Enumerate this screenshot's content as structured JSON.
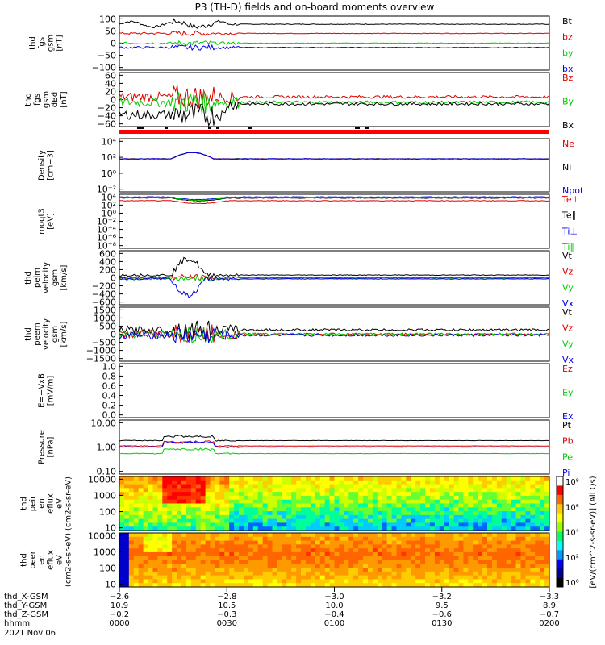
{
  "title": "P3 (TH-D) fields and on-board moments overview",
  "chart_data": [
    {
      "type": "line",
      "ylabel": [
        "thd",
        "fgs",
        "gsm",
        "[nT]"
      ],
      "yticks": [
        "100",
        "50",
        "0",
        "−50",
        "−100"
      ],
      "ylim": [
        -100,
        100
      ],
      "series": [
        {
          "name": "Bt",
          "color": "#000000",
          "baseline": 40
        },
        {
          "name": "bz",
          "color": "#dd0000",
          "baseline": 30
        },
        {
          "name": "by",
          "color": "#00cc00",
          "baseline": 0
        },
        {
          "name": "bx",
          "color": "#0000ee",
          "baseline": -20
        }
      ]
    },
    {
      "type": "line",
      "ylabel": [
        "thd",
        "fgs",
        "gsm",
        "dBd",
        "[nT]"
      ],
      "yticks": [
        "60",
        "40",
        "20",
        "0",
        "−20",
        "−40",
        "−60"
      ],
      "ylim": [
        -80,
        60
      ],
      "series": [
        {
          "name": "Bz",
          "color": "#dd0000",
          "baseline": 0
        },
        {
          "name": "By",
          "color": "#00cc00",
          "baseline": -5
        },
        {
          "name": "Bx",
          "color": "#000000",
          "baseline": -5
        }
      ]
    },
    {
      "type": "line",
      "ylabel": [
        "Density",
        "[cm−3]"
      ],
      "yticks": [
        "10⁴",
        "10²",
        "10⁰",
        "10⁻²"
      ],
      "yscale": "log",
      "series": [
        {
          "name": "Ne",
          "color": "#dd0000"
        },
        {
          "name": "Ni",
          "color": "#000000"
        },
        {
          "name": "Npot",
          "color": "#0000ee"
        }
      ]
    },
    {
      "type": "line",
      "ylabel": [
        "moqt3",
        "[eV]"
      ],
      "yticks": [
        "10⁴",
        "10²",
        "10⁰",
        "10⁻²",
        "10⁻⁴",
        "10⁻⁶",
        "10⁻⁸"
      ],
      "yscale": "log",
      "series": [
        {
          "name": "Te⊥",
          "color": "#dd0000"
        },
        {
          "name": "Te∥",
          "color": "#000000"
        },
        {
          "name": "Ti⊥",
          "color": "#0000ee"
        },
        {
          "name": "Ti∥",
          "color": "#00cc00"
        }
      ]
    },
    {
      "type": "line",
      "ylabel": [
        "thd",
        "peim",
        "velocity",
        "gsm",
        "[km/s]"
      ],
      "yticks": [
        "600",
        "400",
        "200",
        "0",
        "−200",
        "−400",
        "−600"
      ],
      "ylim": [
        -600,
        600
      ],
      "series": [
        {
          "name": "Vt",
          "color": "#000000"
        },
        {
          "name": "Vz",
          "color": "#dd0000"
        },
        {
          "name": "Vy",
          "color": "#00cc00"
        },
        {
          "name": "Vx",
          "color": "#0000ee"
        }
      ]
    },
    {
      "type": "line",
      "ylabel": [
        "thd",
        "peem",
        "velocity",
        "gsm",
        "[km/s]"
      ],
      "yticks": [
        "1500",
        "1000",
        "500",
        "0",
        "−500",
        "−1000",
        "−1500"
      ],
      "ylim": [
        -1500,
        1500
      ],
      "series": [
        {
          "name": "Vt",
          "color": "#000000"
        },
        {
          "name": "Vz",
          "color": "#dd0000"
        },
        {
          "name": "Vy",
          "color": "#00cc00"
        },
        {
          "name": "Vx",
          "color": "#0000ee"
        }
      ]
    },
    {
      "type": "line",
      "ylabel": [
        "E=−VxB",
        "[mV/m]"
      ],
      "yticks": [
        "1.0",
        "0.8",
        "0.6",
        "0.4",
        "0.2",
        "0.0"
      ],
      "ylim": [
        0,
        1
      ],
      "series": [
        {
          "name": "Ez",
          "color": "#dd0000"
        },
        {
          "name": "Ey",
          "color": "#00cc00"
        },
        {
          "name": "Ex",
          "color": "#0000ee"
        }
      ]
    },
    {
      "type": "line",
      "ylabel": [
        "Pressure",
        "[nPa]"
      ],
      "yticks": [
        "10.00",
        "1.00",
        "0.10"
      ],
      "yscale": "log",
      "series": [
        {
          "name": "Pt",
          "color": "#000000"
        },
        {
          "name": "Pb",
          "color": "#dd0000"
        },
        {
          "name": "Pe",
          "color": "#00cc00"
        },
        {
          "name": "Pi",
          "color": "#0000ee"
        }
      ]
    },
    {
      "type": "heatmap",
      "ylabel": [
        "thd",
        "peir",
        "en",
        "eflux",
        "eV",
        "(cm2-s-sr-eV)"
      ],
      "yticks": [
        "10000",
        "1000",
        "100",
        "10"
      ],
      "yscale": "log"
    },
    {
      "type": "heatmap",
      "ylabel": [
        "thd",
        "peer",
        "en",
        "eflux",
        "eV",
        "(cm2-s-sr-eV)"
      ],
      "yticks": [
        "10000",
        "1000",
        "100",
        "10"
      ],
      "yscale": "log"
    }
  ],
  "colorbar": {
    "ticks": [
      "10⁸",
      "10⁶",
      "10⁴",
      "10²",
      "10⁰"
    ],
    "label": "[eV/(cm^2-s-sr-eV)] (All Qs)"
  },
  "xaxis": {
    "rows": [
      {
        "label": "thd_X-GSM",
        "values": [
          "−2.6",
          "−2.8",
          "−3.0",
          "−3.2",
          "−3.3"
        ]
      },
      {
        "label": "thd_Y-GSM",
        "values": [
          "10.9",
          "10.5",
          "10.0",
          "9.5",
          "8.9"
        ]
      },
      {
        "label": "thd_Z-GSM",
        "values": [
          "−0.2",
          "−0.3",
          "−0.4",
          "−0.6",
          "−0.7"
        ]
      },
      {
        "label": "hhmm",
        "values": [
          "0000",
          "0030",
          "0100",
          "0130",
          "0200"
        ]
      }
    ],
    "date": "2021 Nov 06"
  }
}
